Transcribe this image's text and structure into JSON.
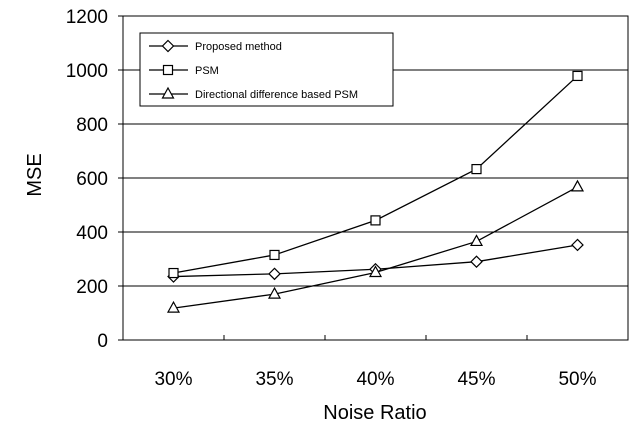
{
  "chart_data": {
    "type": "line",
    "categories": [
      "30%",
      "35%",
      "40%",
      "45%",
      "50%"
    ],
    "xlabel": "Noise Ratio",
    "ylabel": "MSE",
    "ylim": [
      0,
      1200
    ],
    "yticks": [
      "0",
      "200",
      "400",
      "600",
      "800",
      "1000",
      "1200"
    ],
    "grid": "horizontal",
    "legend_position": "top-left",
    "series": [
      {
        "name": "Proposed method",
        "marker": "diamond",
        "values": [
          235,
          245,
          262,
          290,
          352
        ]
      },
      {
        "name": "PSM",
        "marker": "square",
        "values": [
          248,
          315,
          443,
          633,
          978
        ]
      },
      {
        "name": "Directional difference based PSM",
        "marker": "triangle",
        "values": [
          118,
          170,
          250,
          365,
          567
        ]
      }
    ]
  }
}
